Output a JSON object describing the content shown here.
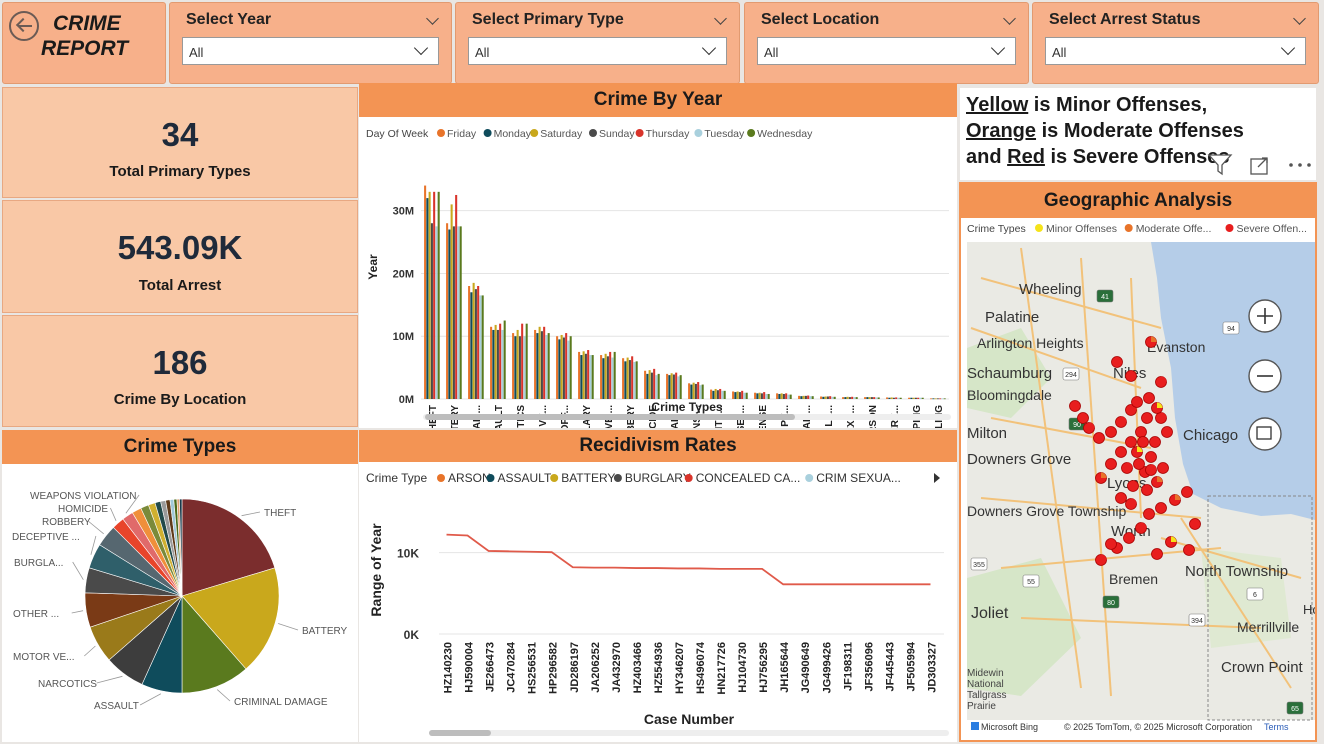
{
  "report": {
    "title_line1": "CRIME",
    "title_line2": "REPORT"
  },
  "slicers": [
    {
      "label": "Select Year",
      "value": "All"
    },
    {
      "label": "Select Primary Type",
      "value": "All"
    },
    {
      "label": "Select Location",
      "value": "All"
    },
    {
      "label": "Select Arrest Status",
      "value": "All"
    }
  ],
  "kpis": [
    {
      "value": "34",
      "label": "Total Primary Types"
    },
    {
      "value": "543.09K",
      "label": "Total Arrest"
    },
    {
      "value": "186",
      "label": "Crime By Location"
    }
  ],
  "legend_note": {
    "w1": "Yellow",
    "t1": " is Minor Offenses,",
    "w2": "Orange",
    "t2": " is Moderate Offenses",
    "t3": "and ",
    "w3": "Red",
    "t4": " is Severe Offenses"
  },
  "chart_data": [
    {
      "type": "bar",
      "title": "Crime By Year",
      "xlabel": "Crime Types",
      "ylabel": "Year",
      "legend_title": "Day Of Week",
      "yticks": [
        "0M",
        "10M",
        "20M",
        "30M"
      ],
      "ylim": [
        0,
        36
      ],
      "categories": [
        "THEFT",
        "BATTERY",
        "CRIMINAL ...",
        "ASSAULT",
        "NARCOTICS",
        "MOTOR VE...",
        "OTHER OFF...",
        "BURGLARY",
        "DECEPTIVE ...",
        "ROBBERY",
        "HOMICIDE",
        "CRIMINAL ...",
        "WEAPONS ...",
        "PROSTITU...",
        "OFFENSE I...",
        "SEX OFFENSE",
        "PUBLIC PE...",
        "CRIMINAL ...",
        "LIQUOR LA...",
        "CRIM SEXU...",
        "ARSON",
        "INTERFERE...",
        "KIDNAPPING",
        "GAMBLING"
      ],
      "series": [
        {
          "name": "Friday",
          "color": "#e8742a",
          "values": [
            34,
            28,
            18,
            11.5,
            10.5,
            11,
            10,
            7.5,
            7,
            6.5,
            4.5,
            4,
            2.5,
            1.5,
            1.2,
            1,
            0.9,
            0.5,
            0.4,
            0.3,
            0.3,
            0.25,
            0.2,
            0.1
          ]
        },
        {
          "name": "Monday",
          "color": "#0f4c5c",
          "values": [
            32,
            27,
            17,
            11,
            10,
            10.5,
            9.5,
            7,
            6.5,
            6,
            4,
            3.8,
            2.3,
            1.3,
            1.1,
            0.9,
            0.8,
            0.45,
            0.35,
            0.3,
            0.3,
            0.2,
            0.2,
            0.1
          ]
        },
        {
          "name": "Saturday",
          "color": "#c9a81c",
          "values": [
            33,
            31,
            18.5,
            11.8,
            11,
            11.5,
            10.2,
            7.6,
            7.2,
            6.6,
            4.6,
            4.1,
            2.6,
            1.6,
            1.2,
            1,
            0.9,
            0.5,
            0.4,
            0.35,
            0.3,
            0.25,
            0.2,
            0.1
          ]
        },
        {
          "name": "Sunday",
          "color": "#4a4a4a",
          "values": [
            28,
            27.5,
            17.5,
            11,
            10,
            10.8,
            9.8,
            7.2,
            6.8,
            6.2,
            4.2,
            3.9,
            2.4,
            1.4,
            1.1,
            0.9,
            0.8,
            0.5,
            0.4,
            0.3,
            0.3,
            0.2,
            0.2,
            0.1
          ]
        },
        {
          "name": "Thursday",
          "color": "#d9342b",
          "values": [
            33,
            32.5,
            18,
            12,
            12,
            11.5,
            10.5,
            7.8,
            7.5,
            6.8,
            4.8,
            4.2,
            2.7,
            1.6,
            1.3,
            1.1,
            0.9,
            0.55,
            0.45,
            0.35,
            0.3,
            0.25,
            0.2,
            0.1
          ]
        },
        {
          "name": "Tuesday",
          "color": "#a9d0dd",
          "values": [
            27.5,
            27.5,
            16.5,
            11,
            10,
            10.2,
            9.3,
            7,
            6.6,
            5.9,
            3.8,
            3.6,
            2.2,
            1.3,
            1,
            0.8,
            0.7,
            0.45,
            0.35,
            0.3,
            0.25,
            0.2,
            0.2,
            0.1
          ]
        },
        {
          "name": "Wednesday",
          "color": "#5a7a1e",
          "values": [
            33,
            27.5,
            16.5,
            12.5,
            12,
            10.5,
            10,
            7,
            7.5,
            6,
            4,
            3.8,
            2.3,
            1.3,
            1,
            0.8,
            0.7,
            0.45,
            0.35,
            0.3,
            0.25,
            0.2,
            0.2,
            0.1
          ]
        }
      ]
    },
    {
      "type": "pie",
      "title": "Crime Types",
      "slices": [
        {
          "label": "THEFT",
          "value": 19.5,
          "color": "#7b2d2d"
        },
        {
          "label": "BATTERY",
          "value": 17.5,
          "color": "#c9a81c"
        },
        {
          "label": "CRIMINAL DAMAGE",
          "value": 11,
          "color": "#5a7a1e"
        },
        {
          "label": "ASSAULT",
          "value": 6.5,
          "color": "#0f4c5c"
        },
        {
          "label": "NARCOTICS",
          "value": 6.5,
          "color": "#3d3d3d"
        },
        {
          "label": "MOTOR VE...",
          "value": 6,
          "color": "#9a7a1a"
        },
        {
          "label": "OTHER ...",
          "value": 5.5,
          "color": "#7a3a16"
        },
        {
          "label": "BURGLA...",
          "value": 4,
          "color": "#4a4a4a"
        },
        {
          "label": "DECEPTIVE ...",
          "value": 4,
          "color": "#2f5f6a"
        },
        {
          "label": "ROBBERY",
          "value": 3.5,
          "color": "#566770"
        },
        {
          "label": "HOMICIDE",
          "value": 2,
          "color": "#e8442a"
        },
        {
          "label": "WEAPONS VIOLATION",
          "value": 1.8,
          "color": "#e06a6a"
        },
        {
          "label": "",
          "value": 1.5,
          "color": "#f08f3a"
        },
        {
          "label": "",
          "value": 1.3,
          "color": "#7a8a3a"
        },
        {
          "label": "",
          "value": 1.1,
          "color": "#d0b030"
        },
        {
          "label": "",
          "value": 0.9,
          "color": "#224a4a"
        },
        {
          "label": "",
          "value": 0.8,
          "color": "#9a9a9a"
        },
        {
          "label": "",
          "value": 0.7,
          "color": "#5f3a1a"
        },
        {
          "label": "",
          "value": 0.6,
          "color": "#a0c8d8"
        },
        {
          "label": "",
          "value": 0.5,
          "color": "#4a6a1a"
        },
        {
          "label": "",
          "value": 0.4,
          "color": "#e0a070"
        },
        {
          "label": "",
          "value": 0.4,
          "color": "#1a3a4a"
        }
      ]
    },
    {
      "type": "line",
      "title": "Recidivism Rates",
      "xlabel": "Case Number",
      "ylabel": "Range of Year",
      "legend_title": "Crime Type",
      "legend": [
        {
          "name": "ARSON",
          "color": "#e8742a"
        },
        {
          "name": "ASSAULT",
          "color": "#0f4c5c"
        },
        {
          "name": "BATTERY",
          "color": "#c9a81c"
        },
        {
          "name": "BURGLARY",
          "color": "#4a4a4a"
        },
        {
          "name": "CONCEALED CA...",
          "color": "#d9342b"
        },
        {
          "name": "CRIM SEXUA...",
          "color": "#a9d0dd"
        }
      ],
      "yticks": [
        "0K",
        "10K"
      ],
      "ylim": [
        0,
        14000
      ],
      "x": [
        "HZ140230",
        "HJ590004",
        "JE266473",
        "JC470284",
        "HS256531",
        "HP296582",
        "JD286197",
        "JA206252",
        "JA432970",
        "HZ403466",
        "HZ554936",
        "HY346207",
        "HS496074",
        "HN217726",
        "HJ104730",
        "HJ756295",
        "JH165644",
        "JG490649",
        "JG499426",
        "JF198311",
        "JF356096",
        "JF445443",
        "JF505994",
        "JD303327"
      ],
      "series": [
        {
          "name": "CONCEALED CA...",
          "color": "#e05a4a",
          "values": [
            12200,
            12100,
            10200,
            10150,
            10100,
            10050,
            8200,
            8150,
            8150,
            8100,
            8100,
            8050,
            8050,
            8000,
            8000,
            8000,
            6100,
            6100,
            6100,
            6100,
            6100,
            6100,
            6100,
            6100
          ]
        }
      ]
    }
  ],
  "map": {
    "title": "Geographic Analysis",
    "legend_title": "Crime Types",
    "legend": [
      {
        "name": "Minor Offenses",
        "color": "#f5e31a"
      },
      {
        "name": "Moderate Offe...",
        "color": "#e8742a"
      },
      {
        "name": "Severe Offen...",
        "color": "#e81e1e"
      }
    ],
    "places": [
      {
        "name": "Wheeling"
      },
      {
        "name": "Palatine"
      },
      {
        "name": "Arlington Heights"
      },
      {
        "name": "Evanston"
      },
      {
        "name": "Schaumburg"
      },
      {
        "name": "Niles"
      },
      {
        "name": "Bloomingdale"
      },
      {
        "name": "Milton"
      },
      {
        "name": "Chicago"
      },
      {
        "name": "Downers Grove"
      },
      {
        "name": "Lyons"
      },
      {
        "name": "Downers Grove Township"
      },
      {
        "name": "Worth"
      },
      {
        "name": "Bremen"
      },
      {
        "name": "North Township"
      },
      {
        "name": "Joliet"
      },
      {
        "name": "Hob"
      },
      {
        "name": "Merrillville"
      },
      {
        "name": "Crown Point"
      },
      {
        "name": "Midewin National Tallgrass Prairie"
      }
    ],
    "shields": [
      "41",
      "94",
      "294",
      "90",
      "355",
      "55",
      "80",
      "6",
      "394",
      "65"
    ],
    "attribution": "© 2025 TomTom, © 2025 Microsoft Corporation",
    "terms": "Terms",
    "bing": "Microsoft Bing"
  }
}
